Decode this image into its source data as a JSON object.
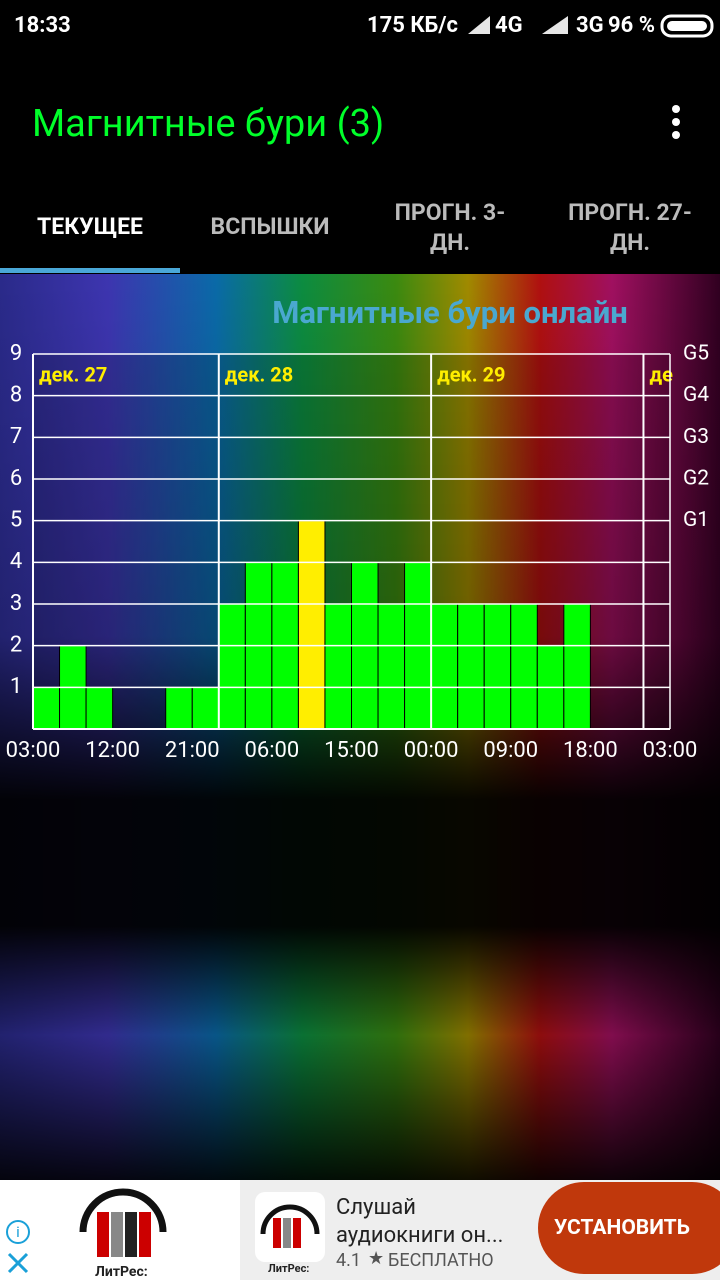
{
  "status_bar": {
    "time": "18:33",
    "speed": "175 КБ/с",
    "net1": "4G",
    "net2": "3G",
    "battery": "96 %"
  },
  "app_bar": {
    "title": "Магнитные бури (3)"
  },
  "tabs": [
    "ТЕКУЩЕЕ",
    "ВСПЫШКИ",
    "ПРОГН. 3-ДН.",
    "ПРОГН. 27-ДН."
  ],
  "chart_data": {
    "type": "bar",
    "title": "Магнитные бури онлайн",
    "values": [
      1,
      2,
      1,
      null,
      null,
      1,
      1,
      3,
      4,
      4,
      5,
      3,
      4,
      3,
      4,
      3,
      3,
      3,
      3,
      2,
      3,
      null,
      null,
      null
    ],
    "colors": [
      "#00ff00",
      "#00ff00",
      "#00ff00",
      null,
      null,
      "#00ff00",
      "#00ff00",
      "#00ff00",
      "#00ff00",
      "#00ff00",
      "#ffee00",
      "#00ff00",
      "#00ff00",
      "#00ff00",
      "#00ff00",
      "#00ff00",
      "#00ff00",
      "#00ff00",
      "#00ff00",
      "#00ff00",
      "#00ff00",
      null,
      null,
      null
    ],
    "xticks": [
      "03:00",
      "12:00",
      "21:00",
      "06:00",
      "15:00",
      "00:00",
      "09:00",
      "18:00",
      "03:00"
    ],
    "day_labels": [
      "дек. 27",
      "дек. 28",
      "дек. 29",
      "де"
    ],
    "ylim": [
      0,
      9
    ],
    "yticks": [
      1,
      2,
      3,
      4,
      5,
      6,
      7,
      8,
      9
    ],
    "y2lim": [
      0,
      9
    ],
    "y2ticks": [
      {
        "value": 5,
        "label": "G1"
      },
      {
        "value": 6,
        "label": "G2"
      },
      {
        "value": 7,
        "label": "G3"
      },
      {
        "value": 8,
        "label": "G4"
      },
      {
        "value": 9,
        "label": "G5"
      }
    ],
    "grid": true
  },
  "ad": {
    "brand": "ЛитРес:",
    "brand2": "ЛитРес:",
    "text": "Слушай аудиокниги он...",
    "rating": "4.1",
    "price": "БЕСПЛАТНО",
    "button": "УСТАНОВИТЬ"
  }
}
